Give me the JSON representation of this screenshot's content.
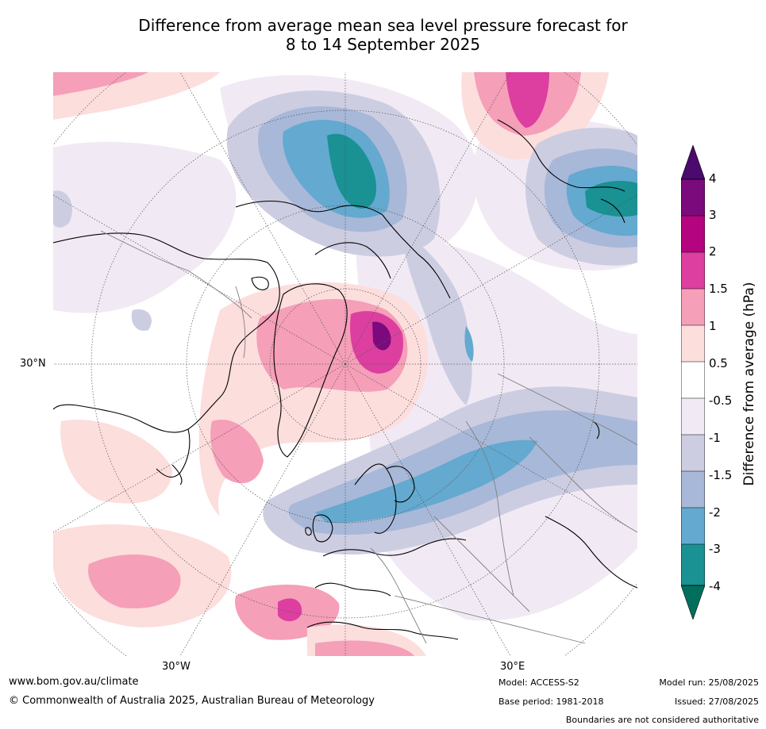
{
  "title": {
    "line1": "Difference from average mean sea level pressure forecast for",
    "line2": "8 to 14 September 2025"
  },
  "map": {
    "projection": "north polar stereographic",
    "lat_labels": [
      "30°N"
    ],
    "lon_labels": [
      "30°W",
      "30°E"
    ]
  },
  "legend": {
    "title": "Difference from average (hPa)",
    "tick_labels": [
      "4",
      "3",
      "2",
      "1.5",
      "1",
      "0.5",
      "-0.5",
      "-1",
      "-1.5",
      "-2",
      "-3",
      "-4"
    ],
    "bins_top_to_bottom": [
      {
        "range": "> 4",
        "color": "#4b0a6e"
      },
      {
        "range": "3 to 4",
        "color": "#7b0a7c"
      },
      {
        "range": "2 to 3",
        "color": "#b5047f"
      },
      {
        "range": "1.5 to 2",
        "color": "#dc3fa0"
      },
      {
        "range": "1 to 1.5",
        "color": "#f59fb8"
      },
      {
        "range": "0.5 to 1",
        "color": "#fcdedd"
      },
      {
        "range": "-0.5 to 0.5",
        "color": "#ffffff"
      },
      {
        "range": "-1 to -0.5",
        "color": "#f1eaf4"
      },
      {
        "range": "-1.5 to -1",
        "color": "#cdcde2"
      },
      {
        "range": "-2 to -1.5",
        "color": "#a8b8d8"
      },
      {
        "range": "-3 to -2",
        "color": "#64a9cf"
      },
      {
        "range": "-4 to -3",
        "color": "#1a9193"
      },
      {
        "range": "< -4",
        "color": "#00705c"
      }
    ]
  },
  "footer": {
    "website": "www.bom.gov.au/climate",
    "copyright": "© Commonwealth of Australia 2025, Australian Bureau of Meteorology",
    "model": "Model: ACCESS-S2",
    "base_period": "Base period: 1981-2018",
    "model_run": "Model run: 25/08/2025",
    "issued": "Issued: 27/08/2025",
    "disclaimer": "Boundaries are not considered authoritative"
  }
}
